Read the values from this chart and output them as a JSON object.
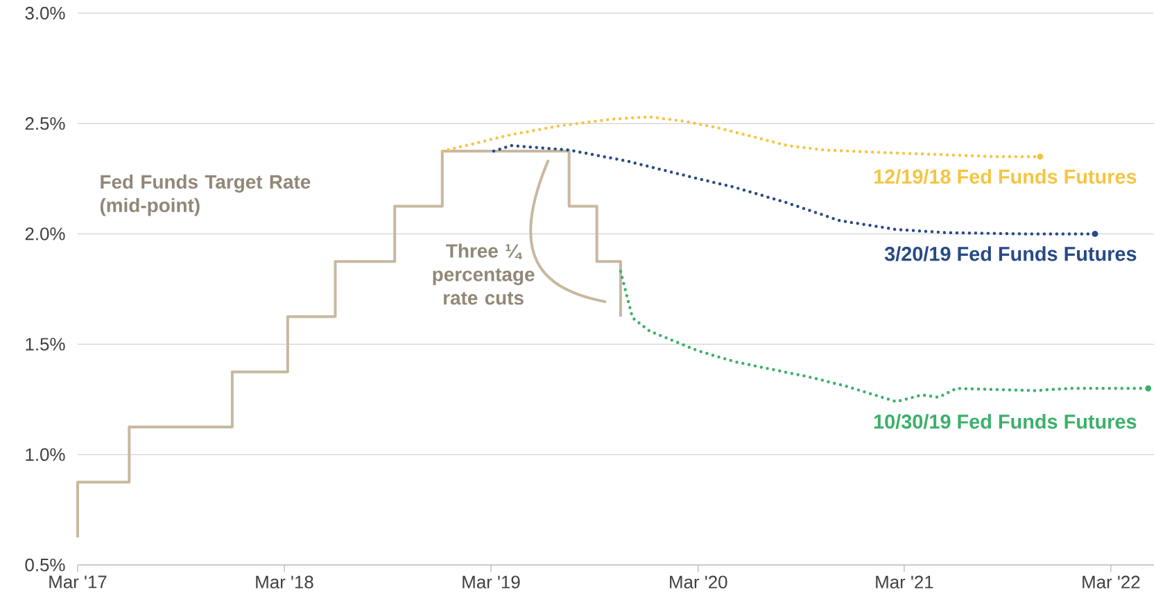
{
  "chart_data": {
    "type": "line",
    "xlim": [
      "2017-03-15",
      "2022-05-30"
    ],
    "ylim": [
      0.5,
      3.0
    ],
    "xticks": [
      {
        "value": "2017-03-15",
        "label": "Mar '17"
      },
      {
        "value": "2018-03-15",
        "label": "Mar '18"
      },
      {
        "value": "2019-03-15",
        "label": "Mar '19"
      },
      {
        "value": "2020-03-15",
        "label": "Mar '20"
      },
      {
        "value": "2021-03-15",
        "label": "Mar '21"
      },
      {
        "value": "2022-03-15",
        "label": "Mar '22"
      }
    ],
    "yticks": [
      {
        "value": 0.5,
        "label": "0.5%"
      },
      {
        "value": 1.0,
        "label": "1.0%"
      },
      {
        "value": 1.5,
        "label": "1.5%"
      },
      {
        "value": 2.0,
        "label": "2.0%"
      },
      {
        "value": 2.5,
        "label": "2.5%"
      },
      {
        "value": 3.0,
        "label": "3.0%"
      }
    ],
    "grid": "y",
    "series": [
      {
        "name": "Fed Funds Target Rate (mid-point)",
        "type": "step",
        "color": "#c8b8a0",
        "line_style": "solid",
        "x": [
          "2017-03-15",
          "2017-03-15",
          "2017-06-14",
          "2017-12-13",
          "2018-03-21",
          "2018-06-13",
          "2018-09-26",
          "2018-12-19",
          "2019-07-31",
          "2019-09-18",
          "2019-10-30",
          "2019-10-30"
        ],
        "values": [
          0.625,
          0.875,
          1.125,
          1.375,
          1.625,
          1.875,
          2.125,
          2.375,
          2.125,
          1.875,
          1.625,
          1.625
        ]
      },
      {
        "name": "12/19/18 Fed Funds Futures",
        "color": "#f5c542",
        "line_style": "dotted",
        "x": [
          "2018-12-19",
          "2019-02-15",
          "2019-04-20",
          "2019-07-15",
          "2019-10-15",
          "2019-12-20",
          "2020-02-20",
          "2020-04-20",
          "2020-06-20",
          "2020-08-20",
          "2020-10-25",
          "2021-01-20",
          "2021-05-10",
          "2021-08-20",
          "2021-11-10"
        ],
        "values": [
          2.375,
          2.41,
          2.45,
          2.49,
          2.52,
          2.53,
          2.51,
          2.48,
          2.44,
          2.4,
          2.38,
          2.37,
          2.36,
          2.35,
          2.35
        ]
      },
      {
        "name": "3/20/19 Fed Funds Futures",
        "color": "#264a85",
        "line_style": "dotted",
        "x": [
          "2019-03-20",
          "2019-04-20",
          "2019-07-31",
          "2019-11-10",
          "2020-03-15",
          "2020-05-20",
          "2020-08-20",
          "2020-11-20",
          "2021-03-01",
          "2021-06-01",
          "2021-10-15",
          "2022-02-15"
        ],
        "values": [
          2.375,
          2.4,
          2.38,
          2.33,
          2.25,
          2.21,
          2.14,
          2.06,
          2.02,
          2.005,
          2.0,
          2.0
        ]
      },
      {
        "name": "10/30/19 Fed Funds Futures",
        "color": "#3cb06a",
        "line_style": "dotted",
        "x": [
          "2019-10-30",
          "2019-11-20",
          "2019-12-20",
          "2020-03-15",
          "2020-05-20",
          "2020-09-30",
          "2020-12-01",
          "2021-03-01",
          "2021-04-15",
          "2021-05-15",
          "2021-06-15",
          "2021-11-01",
          "2022-01-01",
          "2022-05-20"
        ],
        "values": [
          1.83,
          1.62,
          1.56,
          1.47,
          1.42,
          1.35,
          1.31,
          1.24,
          1.27,
          1.26,
          1.3,
          1.29,
          1.3,
          1.3
        ]
      }
    ],
    "annotations": [
      "Three ¼ percentage rate cuts"
    ]
  }
}
